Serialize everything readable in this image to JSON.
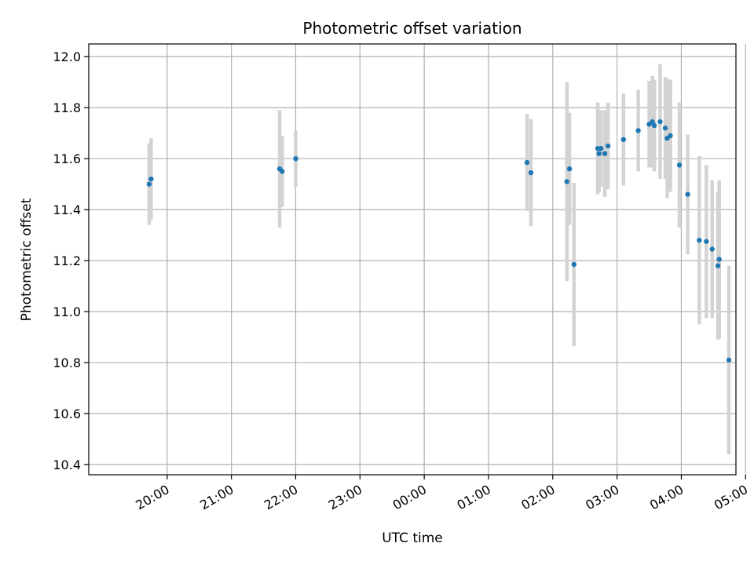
{
  "chart_data": {
    "type": "scatter",
    "title": "Photometric offset variation",
    "xlabel": "UTC time",
    "ylabel": "Photometric offset",
    "x_unit": "hours since 19:00 UTC",
    "xlim": [
      -0.22,
      9.85
    ],
    "ylim": [
      10.36,
      12.05
    ],
    "grid": true,
    "x_ticks": [
      {
        "value": 1,
        "label": "20:00"
      },
      {
        "value": 2,
        "label": "21:00"
      },
      {
        "value": 3,
        "label": "22:00"
      },
      {
        "value": 4,
        "label": "23:00"
      },
      {
        "value": 5,
        "label": "00:00"
      },
      {
        "value": 6,
        "label": "01:00"
      },
      {
        "value": 7,
        "label": "02:00"
      },
      {
        "value": 8,
        "label": "03:00"
      },
      {
        "value": 9,
        "label": "04:00"
      },
      {
        "value": 10,
        "label": "05:00"
      }
    ],
    "y_ticks": [
      {
        "value": 10.4,
        "label": "10.4"
      },
      {
        "value": 10.6,
        "label": "10.6"
      },
      {
        "value": 10.8,
        "label": "10.8"
      },
      {
        "value": 11.0,
        "label": "11.0"
      },
      {
        "value": 11.2,
        "label": "11.2"
      },
      {
        "value": 11.4,
        "label": "11.4"
      },
      {
        "value": 11.6,
        "label": "11.6"
      },
      {
        "value": 11.8,
        "label": "11.8"
      },
      {
        "value": 12.0,
        "label": "12.0"
      }
    ],
    "series": [
      {
        "name": "offset",
        "marker_color": "#1f77b4",
        "errorbar_color": "#d3d3d3",
        "points": [
          {
            "x": 0.72,
            "y": 11.5,
            "err": 0.16
          },
          {
            "x": 0.75,
            "y": 11.52,
            "err": 0.16
          },
          {
            "x": 2.75,
            "y": 11.56,
            "err": 0.23
          },
          {
            "x": 2.79,
            "y": 11.55,
            "err": 0.14
          },
          {
            "x": 3.0,
            "y": 11.6,
            "err": 0.11
          },
          {
            "x": 6.6,
            "y": 11.585,
            "err": 0.19
          },
          {
            "x": 6.66,
            "y": 11.545,
            "err": 0.21
          },
          {
            "x": 7.22,
            "y": 11.51,
            "err": 0.39
          },
          {
            "x": 7.26,
            "y": 11.56,
            "err": 0.22
          },
          {
            "x": 7.33,
            "y": 11.185,
            "err": 0.32
          },
          {
            "x": 7.7,
            "y": 11.64,
            "err": 0.18
          },
          {
            "x": 7.72,
            "y": 11.62,
            "err": 0.15
          },
          {
            "x": 7.75,
            "y": 11.64,
            "err": 0.15
          },
          {
            "x": 7.81,
            "y": 11.62,
            "err": 0.17
          },
          {
            "x": 7.86,
            "y": 11.65,
            "err": 0.17
          },
          {
            "x": 8.1,
            "y": 11.675,
            "err": 0.18
          },
          {
            "x": 8.33,
            "y": 11.71,
            "err": 0.16
          },
          {
            "x": 8.5,
            "y": 11.735,
            "err": 0.17
          },
          {
            "x": 8.55,
            "y": 11.745,
            "err": 0.18
          },
          {
            "x": 8.58,
            "y": 11.73,
            "err": 0.18
          },
          {
            "x": 8.67,
            "y": 11.745,
            "err": 0.225
          },
          {
            "x": 8.75,
            "y": 11.72,
            "err": 0.2
          },
          {
            "x": 8.78,
            "y": 11.68,
            "err": 0.235
          },
          {
            "x": 8.83,
            "y": 11.69,
            "err": 0.22
          },
          {
            "x": 8.97,
            "y": 11.575,
            "err": 0.245
          },
          {
            "x": 9.1,
            "y": 11.46,
            "err": 0.235
          },
          {
            "x": 9.28,
            "y": 11.28,
            "err": 0.33
          },
          {
            "x": 9.39,
            "y": 11.275,
            "err": 0.3
          },
          {
            "x": 9.48,
            "y": 11.245,
            "err": 0.27
          },
          {
            "x": 9.57,
            "y": 11.18,
            "err": 0.29
          },
          {
            "x": 9.59,
            "y": 11.205,
            "err": 0.31
          },
          {
            "x": 9.74,
            "y": 10.81,
            "err": 0.37
          }
        ]
      }
    ]
  }
}
